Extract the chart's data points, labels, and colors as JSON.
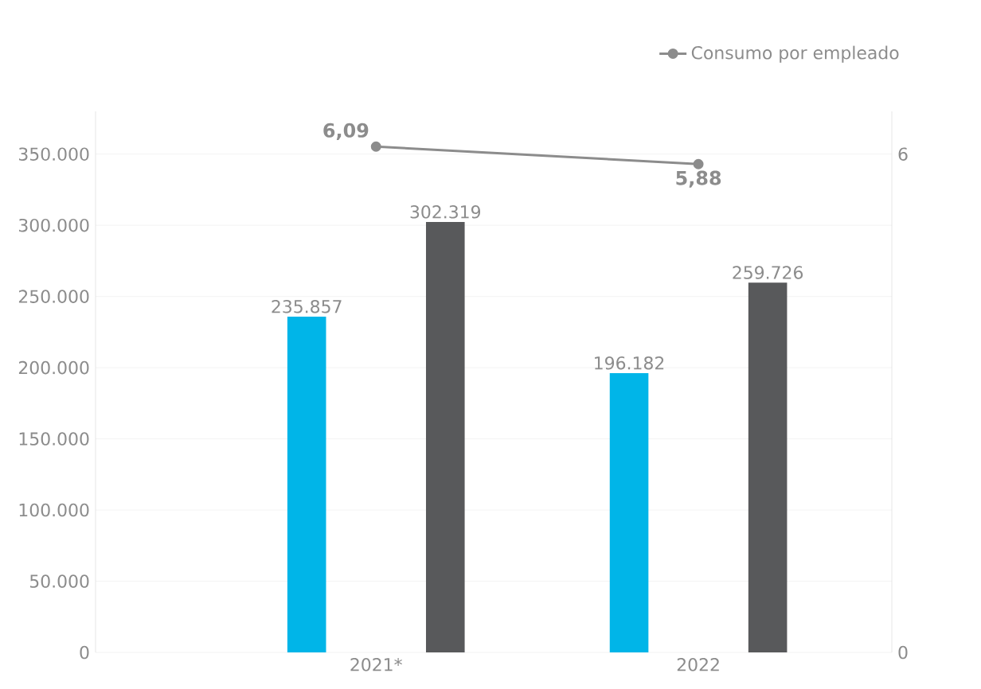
{
  "chart_data": {
    "type": "bar",
    "categories": [
      "2021*",
      "2022"
    ],
    "series": [
      {
        "color": "#00b5e8",
        "values": [
          235857,
          196182
        ],
        "value_labels": [
          "235.857",
          "196.182"
        ]
      },
      {
        "color": "#58595b",
        "values": [
          302319,
          259726
        ],
        "value_labels": [
          "302.319",
          "259.726"
        ]
      },
      {
        "type": "line",
        "name": "Consumo por empleado",
        "color": "#8c8c8c",
        "axis": "y2",
        "marker": "circle",
        "values": [
          6.09,
          5.88
        ],
        "value_labels": [
          "6,09",
          "5,88"
        ]
      }
    ],
    "ylim": [
      0,
      380000
    ],
    "yticks": [
      {
        "value": 0,
        "label": "0"
      },
      {
        "value": 50000,
        "label": "50.000"
      },
      {
        "value": 100000,
        "label": "100.000"
      },
      {
        "value": 150000,
        "label": "150.000"
      },
      {
        "value": 200000,
        "label": "200.000"
      },
      {
        "value": 250000,
        "label": "250.000"
      },
      {
        "value": 300000,
        "label": "300.000"
      },
      {
        "value": 350000,
        "label": "350.000"
      }
    ],
    "y2lim": [
      0,
      6.514286
    ],
    "y2ticks": [
      0,
      6
    ],
    "grid": "y",
    "legend": "top right"
  }
}
